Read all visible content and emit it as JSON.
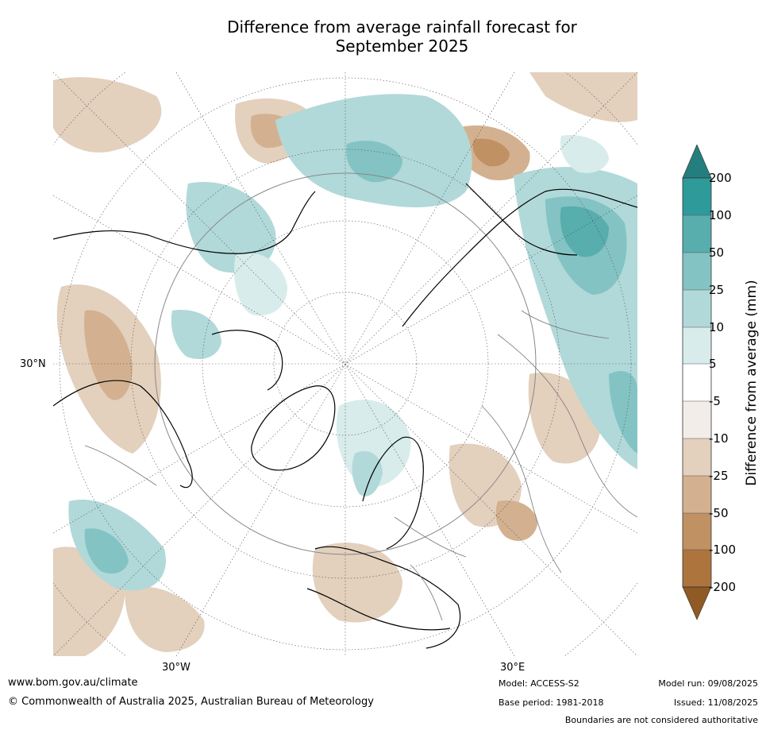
{
  "title": {
    "line1": "Difference from average rainfall forecast for",
    "line2": "September 2025"
  },
  "map": {
    "projection": "north polar stereographic",
    "lat_label_left": "30°N",
    "lon_label_left": "30°W",
    "lon_label_right": "30°E"
  },
  "colorbar": {
    "label": "Difference from average (mm)",
    "tick_labels": [
      "200",
      "100",
      "50",
      "25",
      "10",
      "5",
      "-5",
      "-10",
      "-25",
      "-50",
      "-100",
      "-200"
    ],
    "colors": {
      "above_200": "#257e7e",
      "100_200": "#2e9a9a",
      "50_100": "#58adad",
      "25_50": "#84c3c3",
      "10_25": "#b1d9d9",
      "5_10": "#d8ecec",
      "neutral": "#ffffff",
      "minus5_minus10": "#f2ede8",
      "minus10_minus25": "#e3d0bd",
      "minus25_minus50": "#d3b190",
      "minus50_minus100": "#c09163",
      "minus100_minus200": "#ae743e",
      "below_minus200": "#8f5a24"
    }
  },
  "footer": {
    "website": "www.bom.gov.au/climate",
    "copyright": "© Commonwealth of Australia 2025, Australian Bureau of Meteorology",
    "model": "Model: ACCESS-S2",
    "base_period": "Base period: 1981-2018",
    "model_run": "Model run: 09/08/2025",
    "issued": "Issued: 11/08/2025",
    "disclaimer": "Boundaries are not considered authoritative"
  }
}
